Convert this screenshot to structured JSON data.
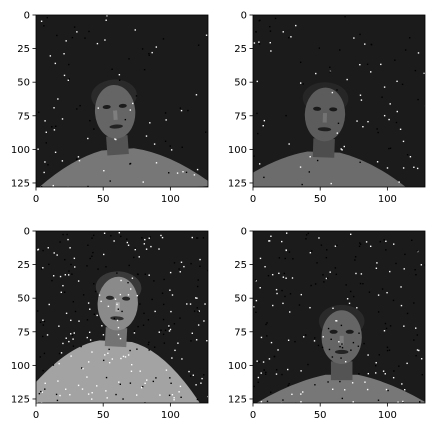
{
  "chart_data": [
    {
      "type": "heatmap",
      "description_in_pixels": "grayscale face image with salt-and-pepper noise",
      "xticks": [
        0,
        50,
        100
      ],
      "yticks": [
        0,
        25,
        50,
        75,
        100,
        125
      ],
      "xlim": [
        0,
        128
      ],
      "ylim": [
        128,
        0
      ],
      "image_size": [
        128,
        128
      ],
      "face_center": [
        60,
        88
      ],
      "tilt_deg": -4,
      "brightness": 0.55,
      "noise_density": 0.035,
      "grid": false
    },
    {
      "type": "heatmap",
      "xticks": [
        0,
        50,
        100
      ],
      "yticks": [
        0,
        25,
        50,
        75,
        100,
        125
      ],
      "xlim": [
        0,
        128
      ],
      "ylim": [
        128,
        0
      ],
      "image_size": [
        128,
        128
      ],
      "face_center": [
        53,
        90
      ],
      "tilt_deg": 2,
      "brightness": 0.5,
      "noise_density": 0.035,
      "grid": false
    },
    {
      "type": "heatmap",
      "xticks": [
        0,
        50,
        100
      ],
      "yticks": [
        0,
        25,
        50,
        75,
        100,
        125
      ],
      "xlim": [
        0,
        128
      ],
      "ylim": [
        128,
        0
      ],
      "image_size": [
        128,
        128
      ],
      "face_center": [
        60,
        70
      ],
      "tilt_deg": 3,
      "brightness": 0.75,
      "noise_density": 0.1,
      "grid": false
    },
    {
      "type": "heatmap",
      "xticks": [
        0,
        50,
        100
      ],
      "yticks": [
        0,
        25,
        50,
        75,
        100,
        125
      ],
      "xlim": [
        0,
        128
      ],
      "ylim": [
        128,
        0
      ],
      "image_size": [
        128,
        128
      ],
      "face_center": [
        66,
        95
      ],
      "tilt_deg": 0,
      "brightness": 0.55,
      "noise_density": 0.08,
      "grid": false
    }
  ]
}
